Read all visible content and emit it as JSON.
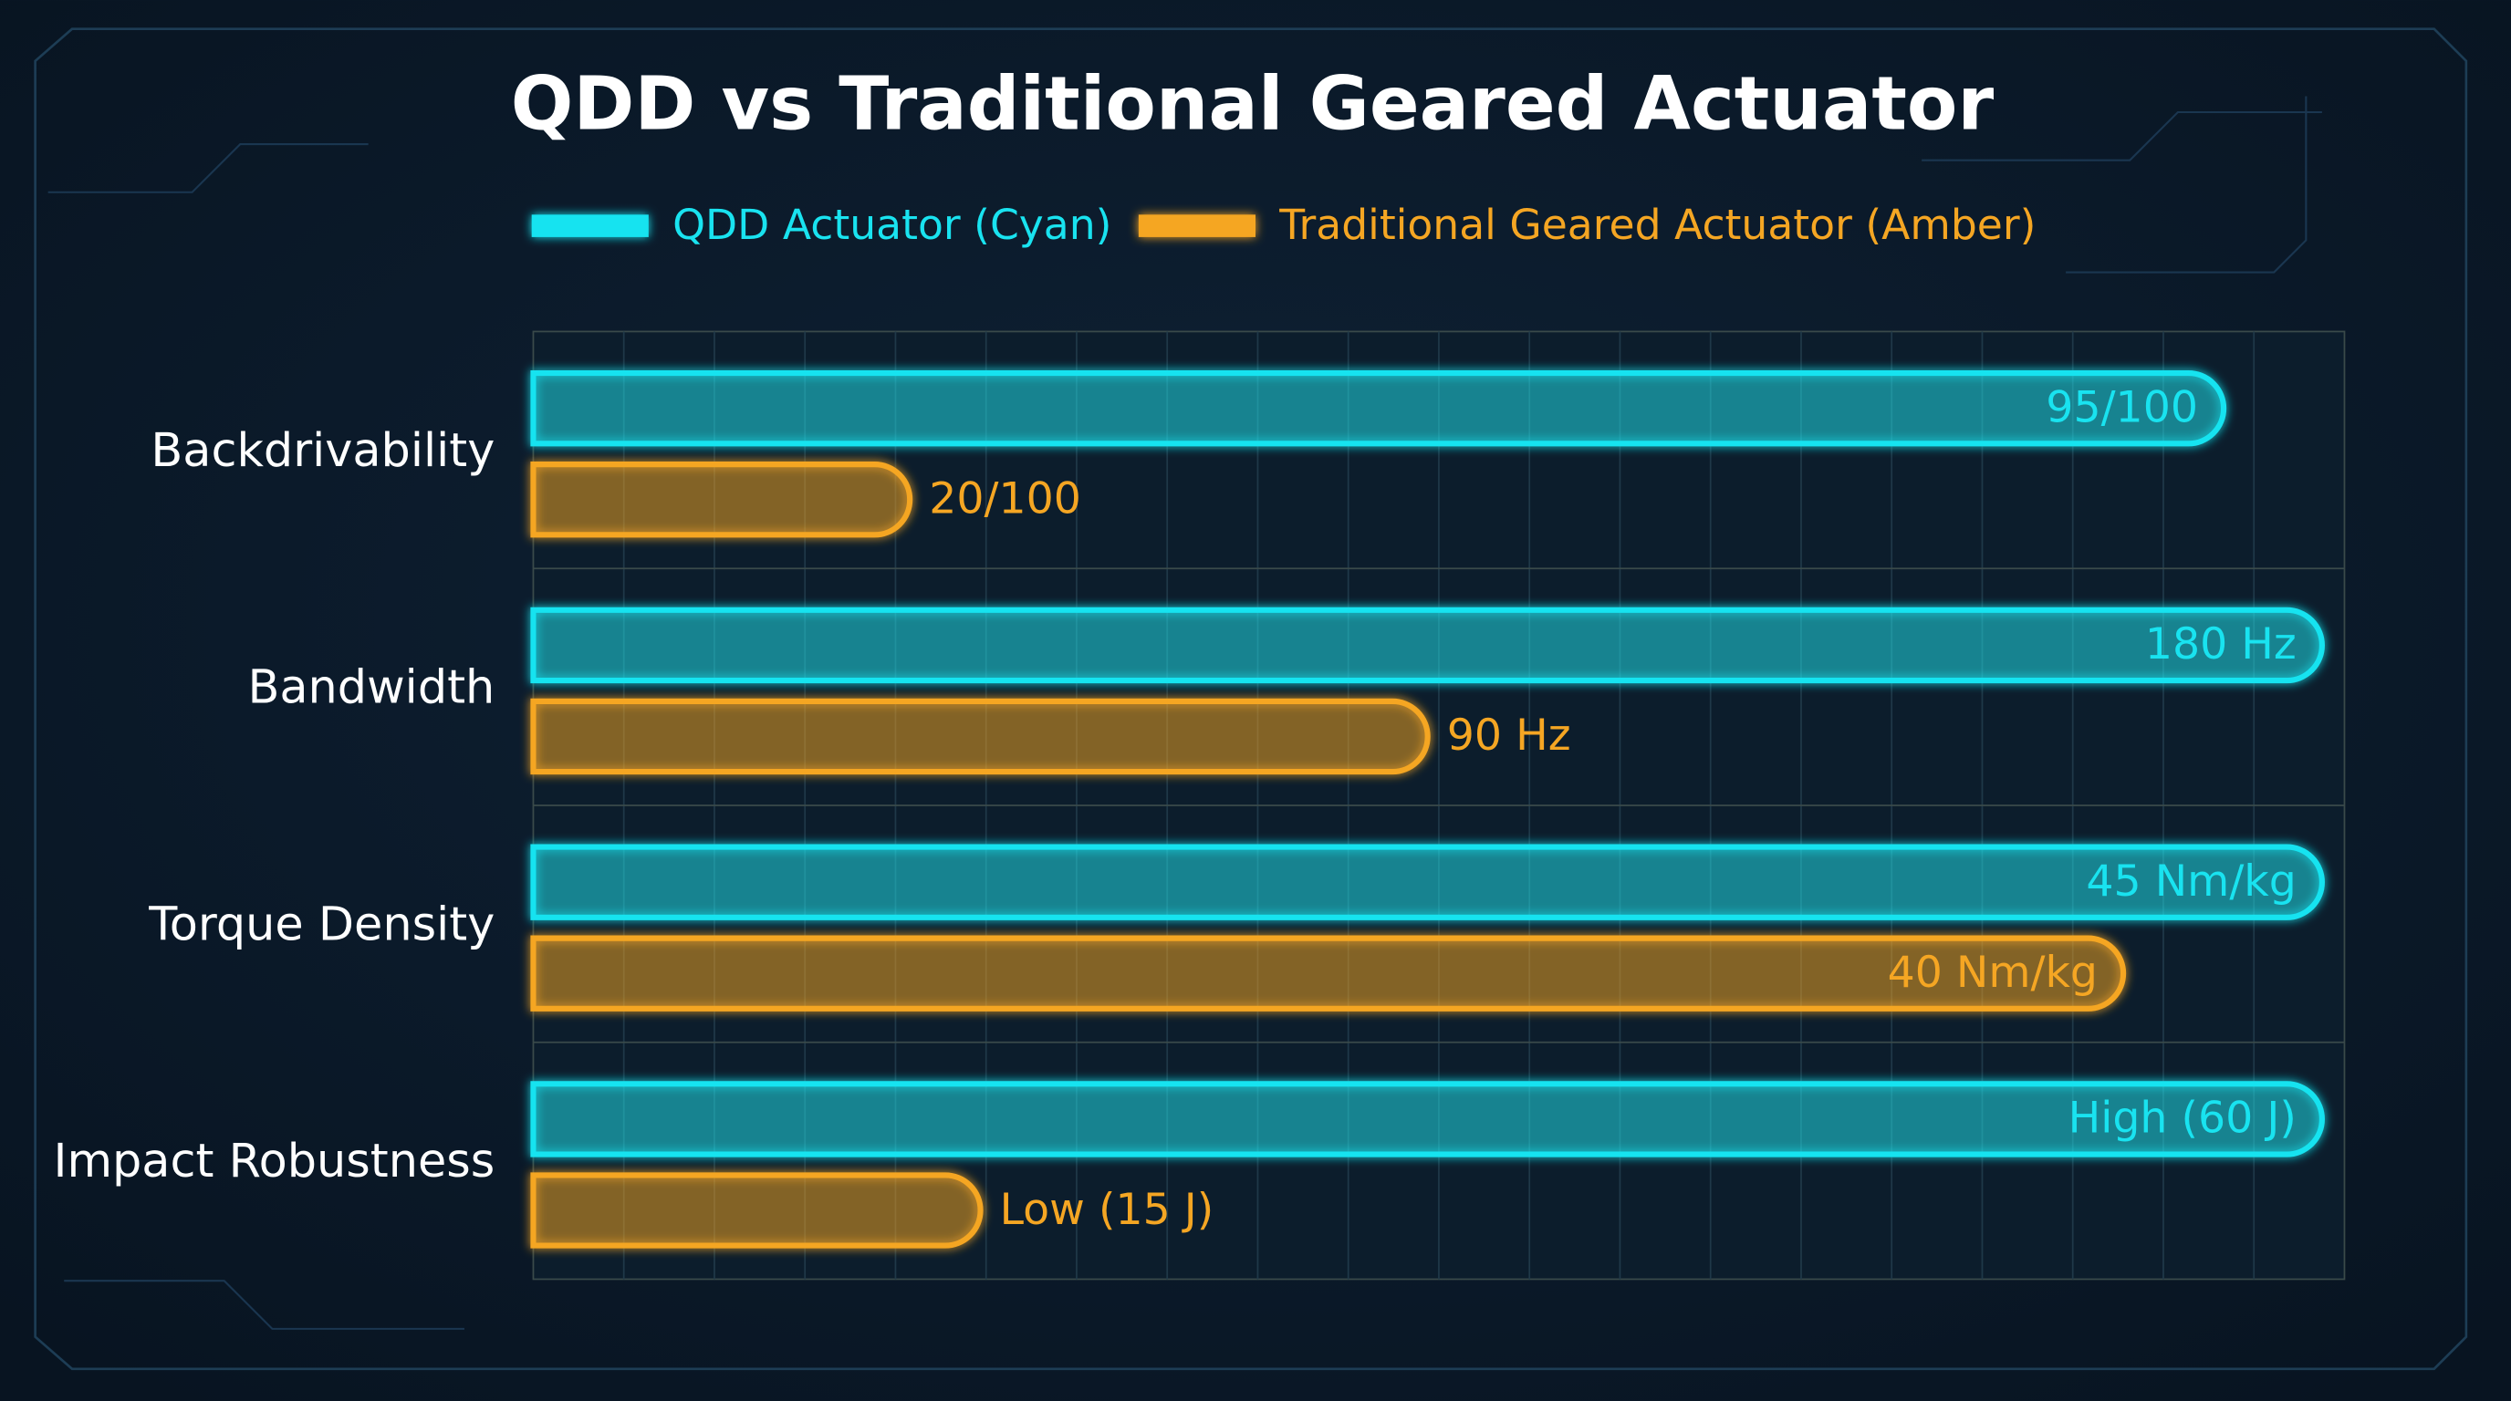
{
  "chart_data": {
    "type": "hbar",
    "title": "QDD vs Traditional Geared Actuator",
    "categories": [
      "Backdrivability",
      "Bandwidth",
      "Torque Density",
      "Impact Robustness"
    ],
    "series": [
      {
        "name": "QDD Actuator (Cyan)",
        "color": "#19e3f0",
        "values": [
          95,
          180,
          45,
          60
        ],
        "value_labels": [
          "95/100",
          "180 Hz",
          "45 Nm/kg",
          "High (60 J)"
        ]
      },
      {
        "name": "Traditional Geared Actuator (Amber)",
        "color": "#f5a623",
        "values": [
          20,
          90,
          40,
          15
        ],
        "value_labels": [
          "20/100",
          "90 Hz",
          "40 Nm/kg",
          "Low (15 J)"
        ]
      }
    ],
    "grid": true
  }
}
